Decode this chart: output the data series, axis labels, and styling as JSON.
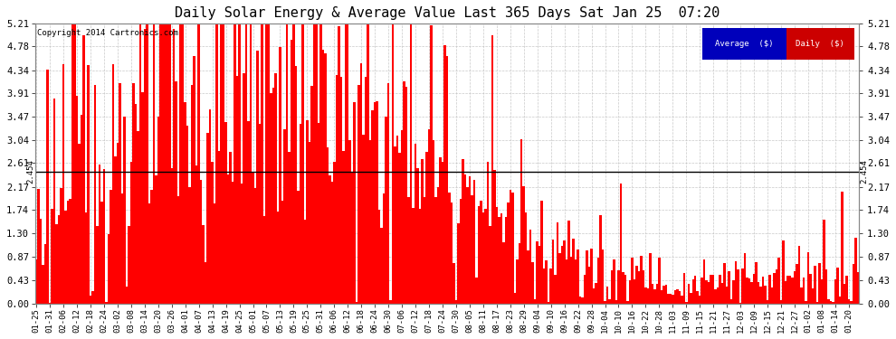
{
  "title": "Daily Solar Energy & Average Value Last 365 Days Sat Jan 25  07:20",
  "copyright": "Copyright 2014 Cartronics.com",
  "average_value": 2.454,
  "average_label": "2.454",
  "yticks": [
    0.0,
    0.43,
    0.87,
    1.3,
    1.74,
    2.17,
    2.61,
    3.04,
    3.47,
    3.91,
    4.34,
    4.78,
    5.21
  ],
  "ylim": [
    0.0,
    5.21
  ],
  "bar_color": "#ff0000",
  "average_line_color": "#000000",
  "background_color": "#ffffff",
  "grid_color": "#bbbbbb",
  "legend_avg_bg": "#0000bb",
  "legend_daily_bg": "#cc0000",
  "num_bars": 365,
  "seed": 123,
  "xtick_labels": [
    "01-25",
    "01-31",
    "02-06",
    "02-12",
    "02-18",
    "02-24",
    "03-02",
    "03-08",
    "03-14",
    "03-20",
    "03-26",
    "04-01",
    "04-07",
    "04-13",
    "04-19",
    "04-25",
    "05-01",
    "05-07",
    "05-13",
    "05-19",
    "05-25",
    "05-31",
    "06-06",
    "06-12",
    "06-18",
    "06-24",
    "06-30",
    "07-06",
    "07-12",
    "07-18",
    "07-24",
    "07-30",
    "08-05",
    "08-11",
    "08-17",
    "08-23",
    "08-29",
    "09-04",
    "09-10",
    "09-16",
    "09-22",
    "09-28",
    "10-04",
    "10-10",
    "10-16",
    "10-22",
    "10-28",
    "11-03",
    "11-09",
    "11-15",
    "11-21",
    "11-27",
    "12-03",
    "12-09",
    "12-15",
    "12-21",
    "12-27",
    "01-02",
    "01-08",
    "01-14",
    "01-20"
  ],
  "xtick_day_indices": [
    0,
    6,
    12,
    18,
    24,
    30,
    36,
    42,
    48,
    54,
    60,
    66,
    72,
    78,
    84,
    90,
    96,
    102,
    108,
    114,
    120,
    126,
    132,
    138,
    144,
    150,
    156,
    162,
    168,
    174,
    180,
    186,
    192,
    198,
    204,
    210,
    216,
    222,
    228,
    234,
    240,
    246,
    252,
    258,
    264,
    270,
    276,
    282,
    288,
    294,
    300,
    306,
    312,
    318,
    324,
    330,
    336,
    342,
    348,
    354,
    360
  ]
}
